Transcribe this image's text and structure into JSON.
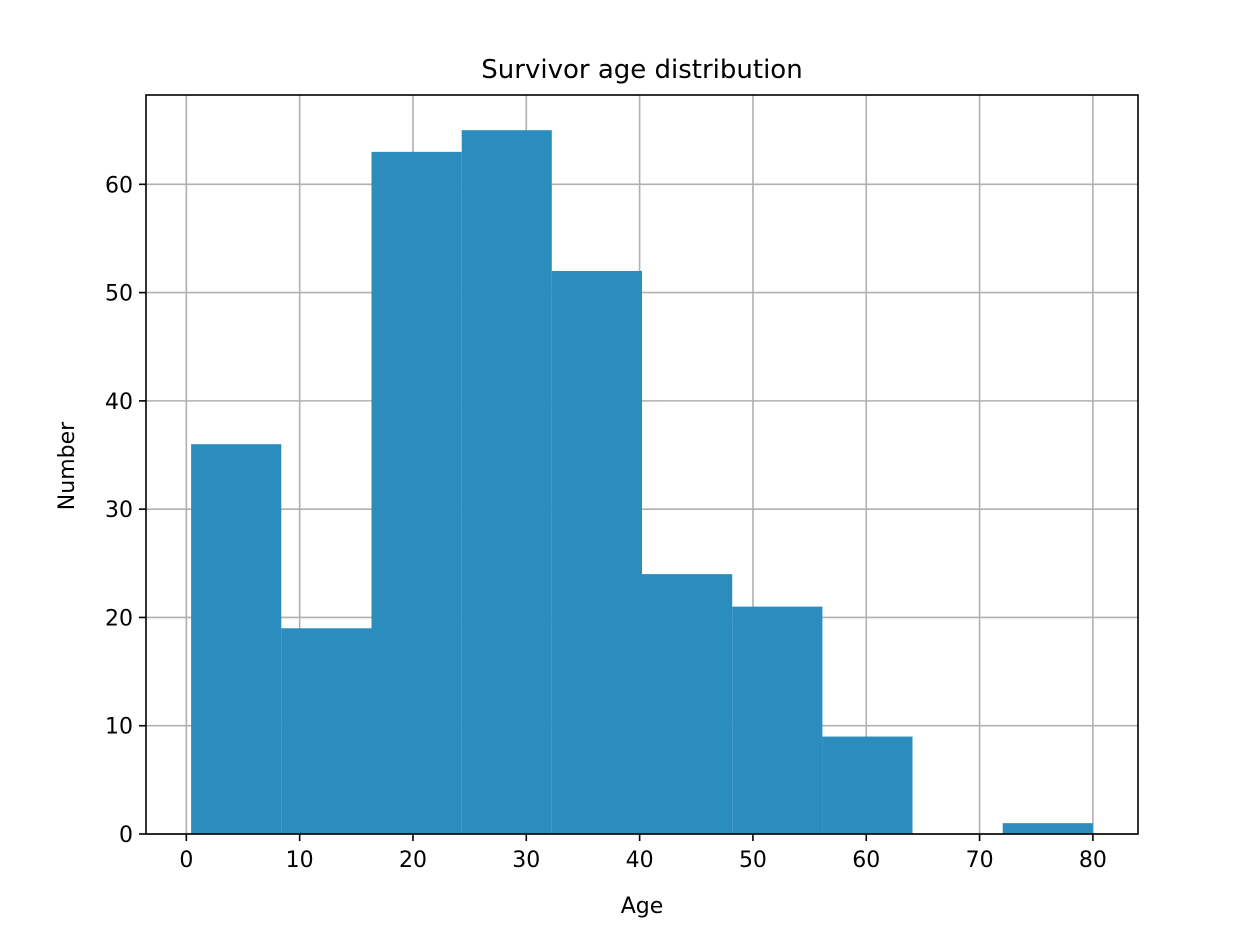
{
  "chart_data": {
    "type": "bar",
    "title": "Survivor age distribution",
    "xlabel": "Age",
    "ylabel": "Number",
    "bins": [
      {
        "x0": 0.42,
        "x1": 8.38,
        "count": 36
      },
      {
        "x0": 8.38,
        "x1": 16.34,
        "count": 19
      },
      {
        "x0": 16.34,
        "x1": 24.3,
        "count": 63
      },
      {
        "x0": 24.3,
        "x1": 32.25,
        "count": 65
      },
      {
        "x0": 32.25,
        "x1": 40.21,
        "count": 52
      },
      {
        "x0": 40.21,
        "x1": 48.17,
        "count": 24
      },
      {
        "x0": 48.17,
        "x1": 56.13,
        "count": 21
      },
      {
        "x0": 56.13,
        "x1": 64.08,
        "count": 9
      },
      {
        "x0": 64.08,
        "x1": 72.04,
        "count": 0
      },
      {
        "x0": 72.04,
        "x1": 80.0,
        "count": 1
      }
    ],
    "xlim": [
      -3.56,
      83.98
    ],
    "ylim": [
      0,
      68.25
    ],
    "xticks": [
      0,
      10,
      20,
      30,
      40,
      50,
      60,
      70,
      80
    ],
    "xtick_labels": [
      "0",
      "10",
      "20",
      "30",
      "40",
      "50",
      "60",
      "70",
      "80"
    ],
    "yticks": [
      0,
      10,
      20,
      30,
      40,
      50,
      60
    ],
    "ytick_labels": [
      "0",
      "10",
      "20",
      "30",
      "40",
      "50",
      "60"
    ],
    "grid": true,
    "bar_color": "#2b8cbe",
    "grid_color": "#b0b0b0"
  }
}
